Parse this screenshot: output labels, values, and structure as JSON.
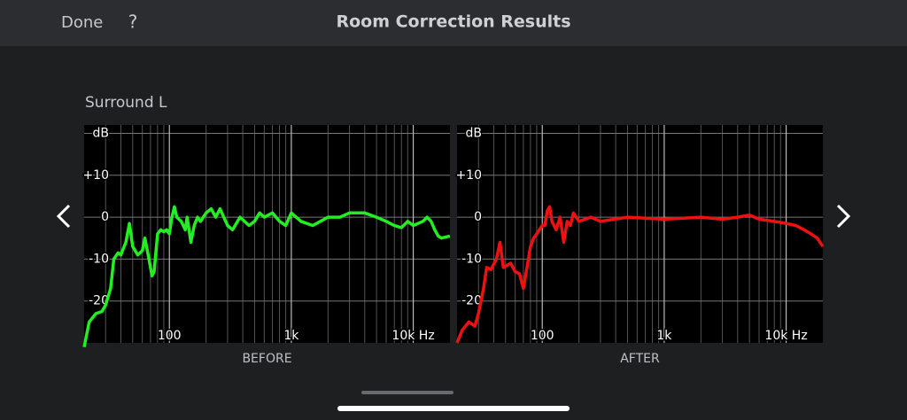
{
  "header": {
    "done": "Done",
    "help": "?",
    "title": "Room Correction Results"
  },
  "section": "Surround L",
  "chart_data": [
    {
      "type": "line",
      "xlabel": "BEFORE",
      "color": "#22ee22",
      "xscale": "log",
      "grid": true,
      "xlim": [
        20,
        20000
      ],
      "ylim": [
        -30,
        22
      ],
      "xticks": [
        100,
        {
          "value": 1000,
          "label": "1k"
        },
        {
          "value": 10000,
          "label": "10k Hz"
        }
      ],
      "xminor": [
        30,
        40,
        50,
        60,
        70,
        80,
        90,
        200,
        300,
        400,
        500,
        600,
        700,
        800,
        900,
        2000,
        3000,
        4000,
        5000,
        6000,
        7000,
        8000,
        9000
      ],
      "yticks": [
        {
          "value": -20,
          "label": "-20"
        },
        {
          "value": -10,
          "label": "-10"
        },
        0,
        {
          "value": 10,
          "label": "+10"
        },
        {
          "value": 20,
          "label": "dB"
        }
      ],
      "x": [
        20,
        22,
        25,
        28,
        30,
        33,
        35,
        38,
        40,
        44,
        47,
        50,
        55,
        60,
        63,
        67,
        72,
        75,
        80,
        85,
        90,
        95,
        100,
        105,
        110,
        115,
        125,
        135,
        140,
        150,
        160,
        170,
        180,
        200,
        220,
        240,
        260,
        300,
        330,
        380,
        450,
        500,
        550,
        600,
        700,
        800,
        900,
        1000,
        1200,
        1500,
        2000,
        2500,
        3000,
        4000,
        5000,
        6000,
        7000,
        8000,
        9000,
        10000,
        12000,
        13000,
        14000,
        15000,
        16000,
        17000,
        20000
      ],
      "values": [
        -31,
        -25,
        -23,
        -22.5,
        -21,
        -17,
        -10,
        -8.5,
        -9,
        -6,
        -1.5,
        -7,
        -9,
        -8,
        -5,
        -9,
        -14,
        -13,
        -4,
        -3,
        -3.5,
        -3,
        -4,
        0,
        2.5,
        0,
        -1,
        -3,
        0,
        -6,
        -2,
        0,
        -1,
        1,
        2,
        0,
        2,
        -2,
        -3,
        0,
        -2,
        -1,
        1,
        0,
        1,
        -1,
        -2,
        1,
        -1,
        -2,
        0,
        0,
        1,
        1,
        0,
        -1,
        -2,
        -2.5,
        -1,
        -2,
        -1,
        0,
        -1,
        -3,
        -4.5,
        -5,
        -4.5
      ]
    },
    {
      "type": "line",
      "xlabel": "AFTER",
      "color": "#ee1111",
      "xscale": "log",
      "grid": true,
      "xlim": [
        20,
        20000
      ],
      "ylim": [
        -30,
        22
      ],
      "xticks": [
        100,
        {
          "value": 1000,
          "label": "1k"
        },
        {
          "value": 10000,
          "label": "10k Hz"
        }
      ],
      "xminor": [
        30,
        40,
        50,
        60,
        70,
        80,
        90,
        200,
        300,
        400,
        500,
        600,
        700,
        800,
        900,
        2000,
        3000,
        4000,
        5000,
        6000,
        7000,
        8000,
        9000
      ],
      "yticks": [
        {
          "value": -20,
          "label": "-20"
        },
        {
          "value": -10,
          "label": "-10"
        },
        0,
        {
          "value": 10,
          "label": "+10"
        },
        {
          "value": 20,
          "label": "dB"
        }
      ],
      "x": [
        20,
        22,
        25,
        28,
        30,
        33,
        35,
        38,
        42,
        45,
        48,
        55,
        60,
        65,
        70,
        75,
        80,
        85,
        90,
        100,
        105,
        110,
        115,
        120,
        130,
        140,
        150,
        160,
        170,
        180,
        200,
        250,
        300,
        500,
        1000,
        2000,
        3000,
        4000,
        5000,
        6000,
        8000,
        10000,
        12000,
        14000,
        16000,
        18000,
        20000
      ],
      "values": [
        -30,
        -27,
        -25,
        -26,
        -23,
        -17,
        -12,
        -12.5,
        -10,
        -6,
        -12,
        -11,
        -13,
        -13.5,
        -17,
        -12,
        -7,
        -5,
        -4,
        -2,
        -2,
        1.5,
        2.5,
        -1,
        -3,
        0,
        -6,
        -1,
        -2,
        1,
        -1,
        0,
        -1,
        0,
        -0.5,
        0,
        -0.5,
        0,
        0.5,
        -0.5,
        -1,
        -1.5,
        -2,
        -3,
        -4,
        -5,
        -7
      ]
    }
  ]
}
